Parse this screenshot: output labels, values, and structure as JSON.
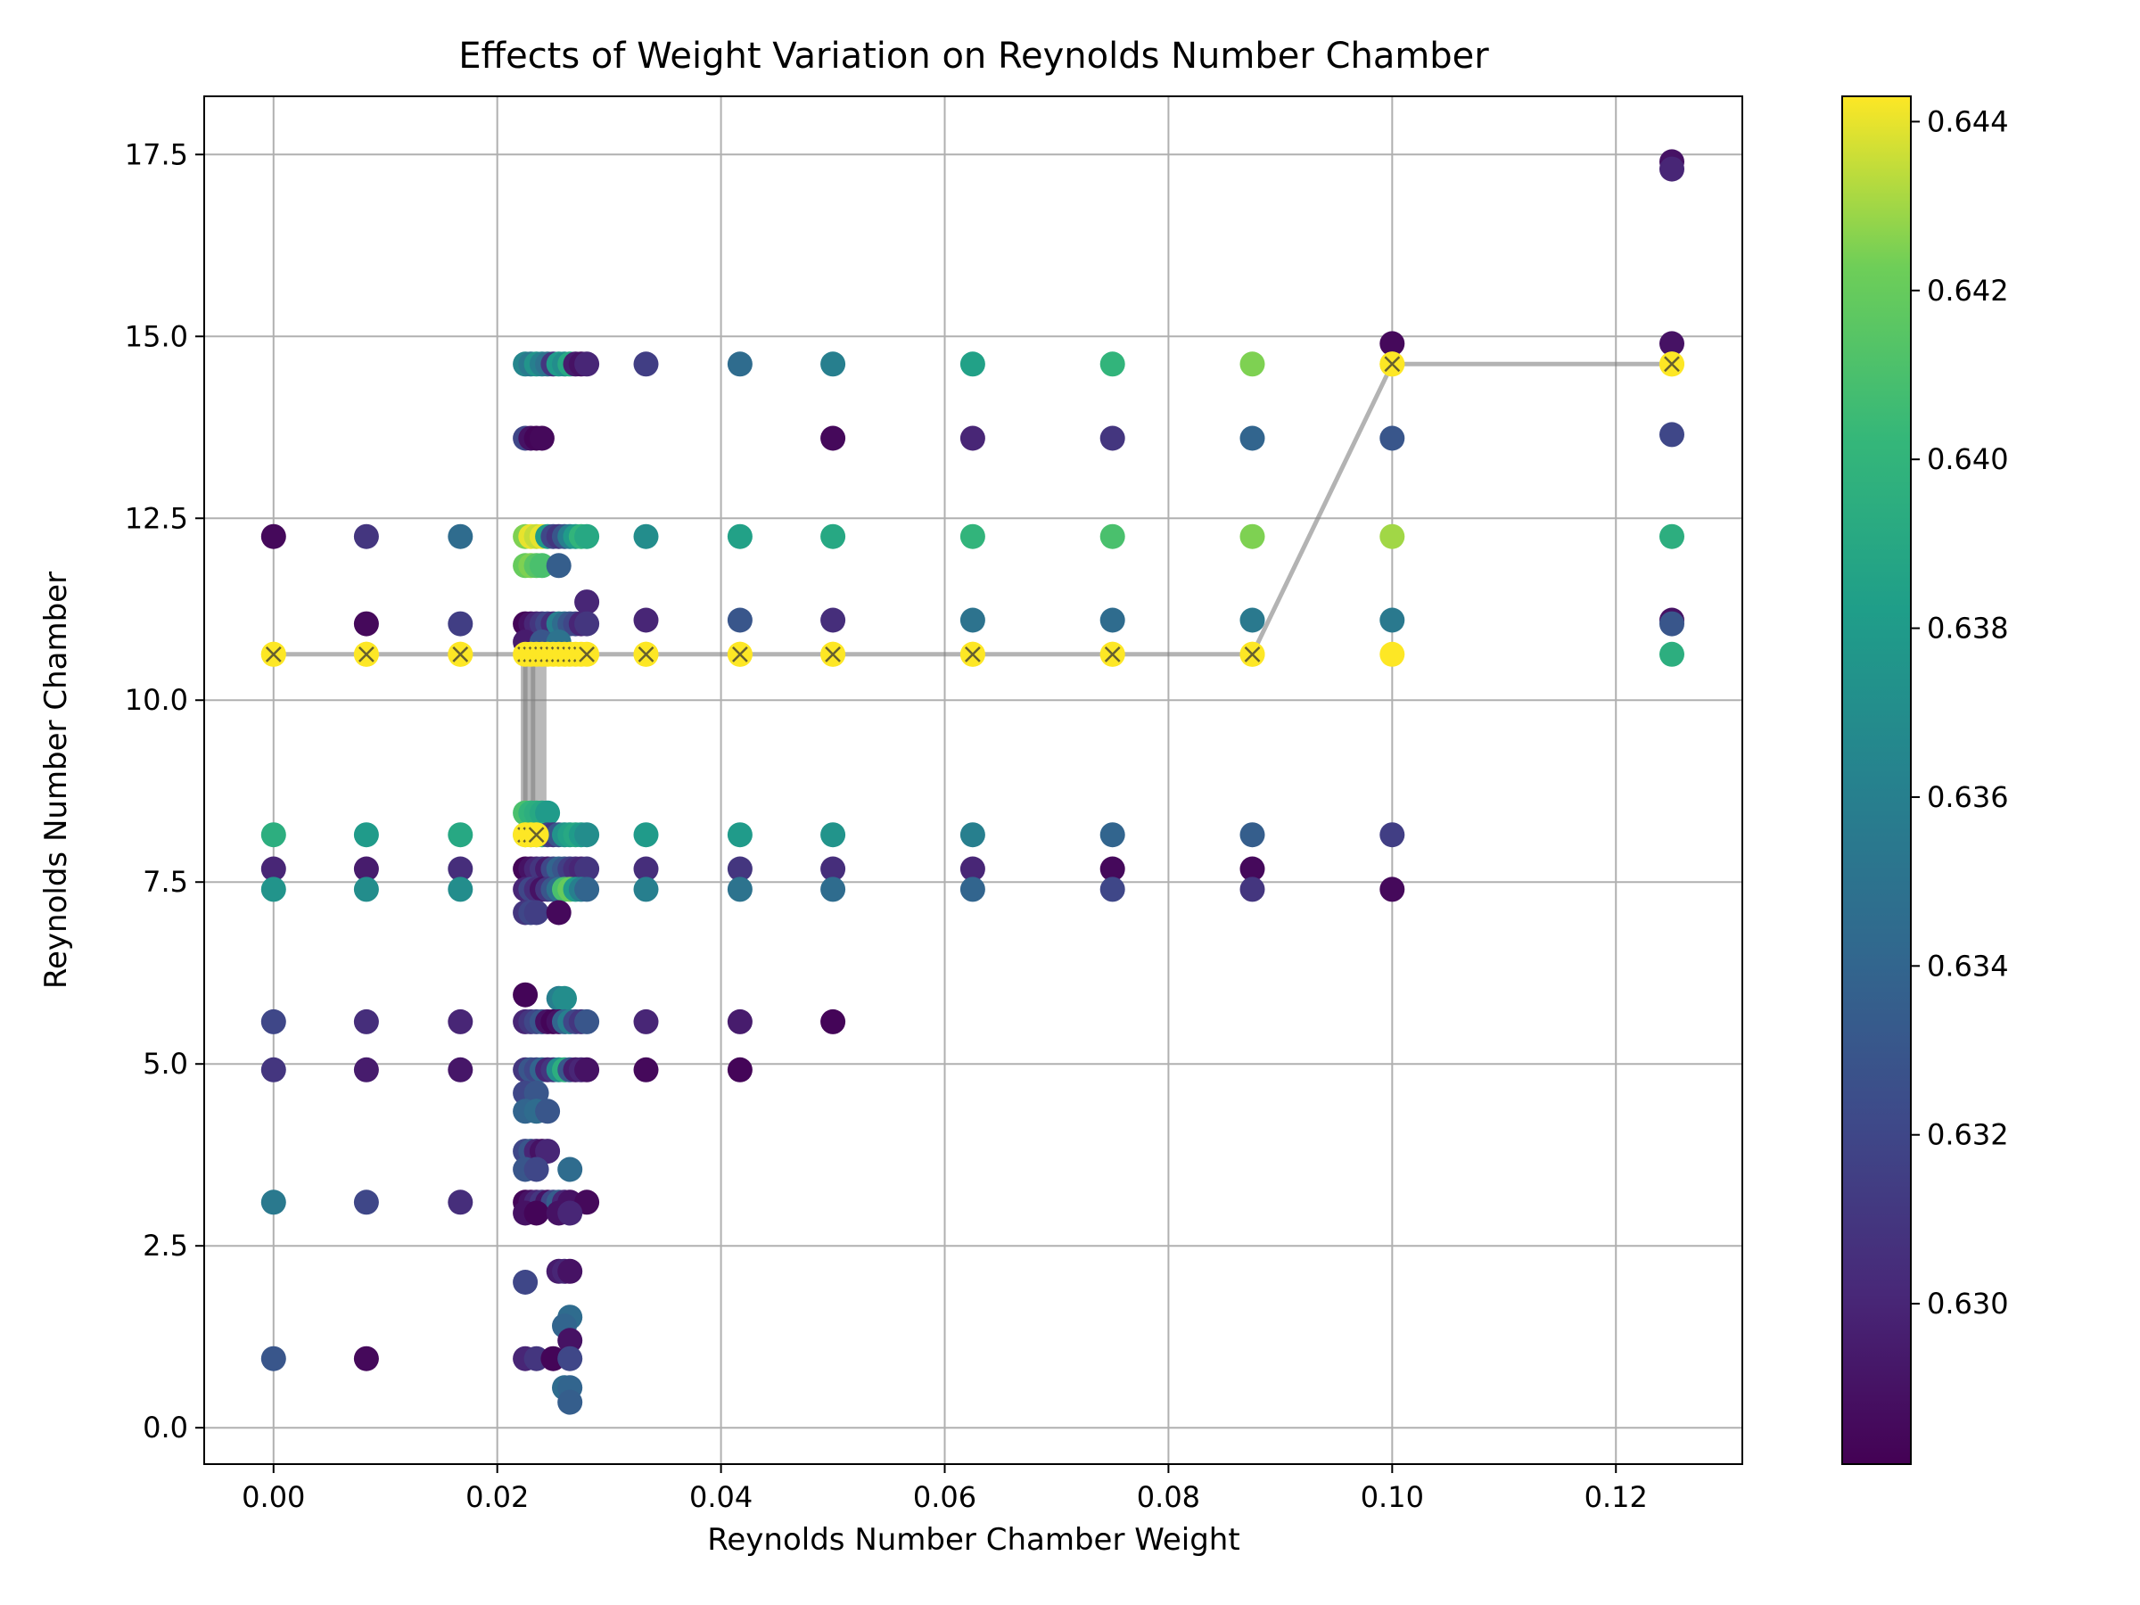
{
  "chart_data": {
    "type": "scatter",
    "title": "Effects of Weight Variation on Reynolds Number Chamber",
    "xlabel": "Reynolds Number Chamber Weight",
    "ylabel": "Reynolds Number Chamber",
    "xlim": [
      -0.0062,
      0.1313
    ],
    "ylim": [
      -0.5,
      18.3
    ],
    "xticks": [
      0.0,
      0.02,
      0.04,
      0.06,
      0.08,
      0.1,
      0.12
    ],
    "xtick_labels": [
      "0.00",
      "0.02",
      "0.04",
      "0.06",
      "0.08",
      "0.10",
      "0.12"
    ],
    "yticks": [
      0.0,
      2.5,
      5.0,
      7.5,
      10.0,
      12.5,
      15.0,
      17.5
    ],
    "ytick_labels": [
      "0.0",
      "2.5",
      "5.0",
      "7.5",
      "10.0",
      "12.5",
      "15.0",
      "17.5"
    ],
    "grid": true,
    "colorbar": {
      "cmap": "viridis",
      "range": [
        0.6281,
        0.6443
      ],
      "ticks": [
        0.63,
        0.632,
        0.634,
        0.636,
        0.638,
        0.64,
        0.642,
        0.644
      ],
      "tick_labels": [
        "0.630",
        "0.632",
        "0.634",
        "0.636",
        "0.638",
        "0.640",
        "0.642",
        "0.644"
      ]
    },
    "points": [
      [
        0.0,
        12.25,
        0.6285
      ],
      [
        0.0,
        10.63,
        0.6443
      ],
      [
        0.0,
        8.15,
        0.6395
      ],
      [
        0.0,
        7.68,
        0.63
      ],
      [
        0.0,
        7.4,
        0.6375
      ],
      [
        0.0,
        5.58,
        0.632
      ],
      [
        0.0,
        4.92,
        0.631
      ],
      [
        0.0,
        3.1,
        0.6355
      ],
      [
        0.0,
        0.95,
        0.633
      ],
      [
        0.0083,
        12.25,
        0.631
      ],
      [
        0.0083,
        11.05,
        0.6285
      ],
      [
        0.0083,
        10.63,
        0.6443
      ],
      [
        0.0083,
        8.15,
        0.638
      ],
      [
        0.0083,
        7.68,
        0.6295
      ],
      [
        0.0083,
        7.4,
        0.637
      ],
      [
        0.0083,
        5.58,
        0.6305
      ],
      [
        0.0083,
        4.92,
        0.6295
      ],
      [
        0.0083,
        3.1,
        0.632
      ],
      [
        0.0083,
        0.95,
        0.6285
      ],
      [
        0.0167,
        12.25,
        0.6345
      ],
      [
        0.0167,
        11.05,
        0.6315
      ],
      [
        0.0167,
        10.63,
        0.6443
      ],
      [
        0.0167,
        8.15,
        0.639
      ],
      [
        0.0167,
        7.68,
        0.6305
      ],
      [
        0.0167,
        7.4,
        0.637
      ],
      [
        0.0167,
        5.58,
        0.63
      ],
      [
        0.0167,
        4.92,
        0.6292
      ],
      [
        0.0167,
        3.1,
        0.6305
      ],
      [
        0.0333,
        14.62,
        0.6315
      ],
      [
        0.0333,
        12.25,
        0.637
      ],
      [
        0.0333,
        11.1,
        0.63
      ],
      [
        0.0333,
        10.63,
        0.6443
      ],
      [
        0.0333,
        8.15,
        0.638
      ],
      [
        0.0333,
        7.68,
        0.6305
      ],
      [
        0.0333,
        7.4,
        0.636
      ],
      [
        0.0333,
        5.58,
        0.63
      ],
      [
        0.0333,
        4.92,
        0.6285
      ],
      [
        0.0417,
        14.62,
        0.6345
      ],
      [
        0.0417,
        12.25,
        0.6385
      ],
      [
        0.0417,
        11.1,
        0.633
      ],
      [
        0.0417,
        10.63,
        0.6443
      ],
      [
        0.0417,
        8.15,
        0.638
      ],
      [
        0.0417,
        7.68,
        0.631
      ],
      [
        0.0417,
        7.4,
        0.635
      ],
      [
        0.0417,
        5.58,
        0.6295
      ],
      [
        0.0417,
        4.92,
        0.6283
      ],
      [
        0.05,
        14.62,
        0.636
      ],
      [
        0.05,
        13.6,
        0.6285
      ],
      [
        0.05,
        12.25,
        0.639
      ],
      [
        0.05,
        11.1,
        0.6305
      ],
      [
        0.05,
        10.63,
        0.6443
      ],
      [
        0.05,
        8.15,
        0.6375
      ],
      [
        0.05,
        7.68,
        0.6305
      ],
      [
        0.05,
        7.4,
        0.6345
      ],
      [
        0.05,
        5.58,
        0.6283
      ],
      [
        0.0625,
        14.62,
        0.6385
      ],
      [
        0.0625,
        13.6,
        0.63
      ],
      [
        0.0625,
        12.25,
        0.64
      ],
      [
        0.0625,
        11.1,
        0.635
      ],
      [
        0.0625,
        10.63,
        0.6443
      ],
      [
        0.0625,
        8.15,
        0.636
      ],
      [
        0.0625,
        7.68,
        0.63
      ],
      [
        0.0625,
        7.4,
        0.634
      ],
      [
        0.075,
        14.62,
        0.64
      ],
      [
        0.075,
        13.6,
        0.631
      ],
      [
        0.075,
        12.25,
        0.641
      ],
      [
        0.075,
        11.1,
        0.6345
      ],
      [
        0.075,
        10.63,
        0.6443
      ],
      [
        0.075,
        8.15,
        0.634
      ],
      [
        0.075,
        7.68,
        0.6285
      ],
      [
        0.075,
        7.4,
        0.632
      ],
      [
        0.0875,
        14.62,
        0.6425
      ],
      [
        0.0875,
        13.6,
        0.634
      ],
      [
        0.0875,
        12.25,
        0.6425
      ],
      [
        0.0875,
        11.1,
        0.6355
      ],
      [
        0.0875,
        10.63,
        0.6443
      ],
      [
        0.0875,
        8.15,
        0.6335
      ],
      [
        0.0875,
        7.68,
        0.6285
      ],
      [
        0.0875,
        7.4,
        0.631
      ],
      [
        0.1,
        14.9,
        0.6285
      ],
      [
        0.1,
        14.62,
        0.6443
      ],
      [
        0.1,
        13.6,
        0.633
      ],
      [
        0.1,
        12.25,
        0.643
      ],
      [
        0.1,
        11.1,
        0.6355
      ],
      [
        0.1,
        10.63,
        0.6443
      ],
      [
        0.1,
        8.15,
        0.6315
      ],
      [
        0.1,
        7.4,
        0.6285
      ],
      [
        0.125,
        17.4,
        0.629
      ],
      [
        0.125,
        17.3,
        0.63
      ],
      [
        0.125,
        14.9,
        0.629
      ],
      [
        0.125,
        14.62,
        0.6443
      ],
      [
        0.125,
        13.65,
        0.632
      ],
      [
        0.125,
        12.25,
        0.6395
      ],
      [
        0.125,
        11.1,
        0.629
      ],
      [
        0.125,
        11.05,
        0.633
      ],
      [
        0.125,
        10.63,
        0.6395
      ],
      [
        0.0225,
        14.62,
        0.6365
      ],
      [
        0.023,
        14.62,
        0.6355
      ],
      [
        0.0235,
        14.62,
        0.6375
      ],
      [
        0.024,
        14.62,
        0.636
      ],
      [
        0.0245,
        14.62,
        0.635
      ],
      [
        0.025,
        14.62,
        0.631
      ],
      [
        0.0255,
        14.62,
        0.638
      ],
      [
        0.026,
        14.62,
        0.637
      ],
      [
        0.0265,
        14.62,
        0.639
      ],
      [
        0.027,
        14.62,
        0.6295
      ],
      [
        0.0275,
        14.62,
        0.629
      ],
      [
        0.028,
        14.62,
        0.63
      ],
      [
        0.0225,
        13.6,
        0.632
      ],
      [
        0.023,
        13.6,
        0.629
      ],
      [
        0.0235,
        13.6,
        0.6283
      ],
      [
        0.024,
        13.6,
        0.6285
      ],
      [
        0.0225,
        12.25,
        0.6425
      ],
      [
        0.023,
        12.25,
        0.644
      ],
      [
        0.0235,
        12.25,
        0.6435
      ],
      [
        0.024,
        12.25,
        0.644
      ],
      [
        0.0245,
        12.25,
        0.638
      ],
      [
        0.025,
        12.25,
        0.632
      ],
      [
        0.0255,
        12.25,
        0.631
      ],
      [
        0.026,
        12.25,
        0.633
      ],
      [
        0.0265,
        12.25,
        0.636
      ],
      [
        0.027,
        12.25,
        0.638
      ],
      [
        0.0275,
        12.25,
        0.64
      ],
      [
        0.028,
        12.25,
        0.639
      ],
      [
        0.0225,
        11.85,
        0.642
      ],
      [
        0.023,
        11.85,
        0.6425
      ],
      [
        0.0235,
        11.85,
        0.6415
      ],
      [
        0.024,
        11.85,
        0.641
      ],
      [
        0.0255,
        11.85,
        0.6335
      ],
      [
        0.028,
        11.35,
        0.63
      ],
      [
        0.0225,
        11.05,
        0.6283
      ],
      [
        0.023,
        11.05,
        0.629
      ],
      [
        0.0235,
        11.05,
        0.63
      ],
      [
        0.024,
        11.05,
        0.631
      ],
      [
        0.0245,
        11.05,
        0.632
      ],
      [
        0.025,
        11.05,
        0.6305
      ],
      [
        0.0255,
        11.05,
        0.636
      ],
      [
        0.026,
        11.05,
        0.6345
      ],
      [
        0.0265,
        11.05,
        0.633
      ],
      [
        0.027,
        11.05,
        0.632
      ],
      [
        0.0275,
        11.05,
        0.63
      ],
      [
        0.028,
        11.05,
        0.631
      ],
      [
        0.0225,
        10.8,
        0.6295
      ],
      [
        0.024,
        10.8,
        0.633
      ],
      [
        0.0255,
        10.8,
        0.635
      ],
      [
        0.0225,
        8.45,
        0.641
      ],
      [
        0.023,
        8.45,
        0.64
      ],
      [
        0.0235,
        8.45,
        0.6395
      ],
      [
        0.024,
        8.45,
        0.639
      ],
      [
        0.0245,
        8.45,
        0.638
      ],
      [
        0.0225,
        8.15,
        0.643
      ],
      [
        0.023,
        8.15,
        0.6415
      ],
      [
        0.0235,
        8.15,
        0.641
      ],
      [
        0.024,
        8.15,
        0.64
      ],
      [
        0.0245,
        8.15,
        0.632
      ],
      [
        0.025,
        8.15,
        0.631
      ],
      [
        0.0255,
        8.15,
        0.633
      ],
      [
        0.026,
        8.15,
        0.6375
      ],
      [
        0.0265,
        8.15,
        0.6385
      ],
      [
        0.027,
        8.15,
        0.639
      ],
      [
        0.0275,
        8.15,
        0.638
      ],
      [
        0.028,
        8.15,
        0.637
      ],
      [
        0.0225,
        7.68,
        0.6283
      ],
      [
        0.023,
        7.68,
        0.629
      ],
      [
        0.0235,
        7.68,
        0.63
      ],
      [
        0.024,
        7.68,
        0.631
      ],
      [
        0.0245,
        7.68,
        0.6295
      ],
      [
        0.025,
        7.68,
        0.632
      ],
      [
        0.0255,
        7.68,
        0.634
      ],
      [
        0.026,
        7.68,
        0.633
      ],
      [
        0.0265,
        7.68,
        0.6315
      ],
      [
        0.027,
        7.68,
        0.6305
      ],
      [
        0.0275,
        7.68,
        0.63
      ],
      [
        0.028,
        7.68,
        0.631
      ],
      [
        0.0225,
        7.4,
        0.63
      ],
      [
        0.023,
        7.4,
        0.632
      ],
      [
        0.0235,
        7.4,
        0.6305
      ],
      [
        0.024,
        7.4,
        0.629
      ],
      [
        0.0245,
        7.4,
        0.631
      ],
      [
        0.025,
        7.4,
        0.633
      ],
      [
        0.0255,
        7.4,
        0.635
      ],
      [
        0.026,
        7.4,
        0.641
      ],
      [
        0.0265,
        7.4,
        0.642
      ],
      [
        0.027,
        7.4,
        0.638
      ],
      [
        0.0275,
        7.4,
        0.636
      ],
      [
        0.028,
        7.4,
        0.634
      ],
      [
        0.0225,
        7.08,
        0.631
      ],
      [
        0.023,
        7.08,
        0.632
      ],
      [
        0.0235,
        7.08,
        0.6315
      ],
      [
        0.0255,
        7.08,
        0.6285
      ],
      [
        0.0225,
        5.95,
        0.6283
      ],
      [
        0.0255,
        5.9,
        0.636
      ],
      [
        0.026,
        5.9,
        0.637
      ],
      [
        0.0225,
        5.58,
        0.63
      ],
      [
        0.023,
        5.58,
        0.631
      ],
      [
        0.0235,
        5.58,
        0.632
      ],
      [
        0.024,
        5.58,
        0.633
      ],
      [
        0.0245,
        5.58,
        0.629
      ],
      [
        0.025,
        5.58,
        0.6283
      ],
      [
        0.0255,
        5.58,
        0.629
      ],
      [
        0.026,
        5.58,
        0.634
      ],
      [
        0.0265,
        5.58,
        0.636
      ],
      [
        0.027,
        5.58,
        0.632
      ],
      [
        0.0275,
        5.58,
        0.631
      ],
      [
        0.028,
        5.58,
        0.633
      ],
      [
        0.0225,
        4.92,
        0.631
      ],
      [
        0.023,
        4.92,
        0.633
      ],
      [
        0.0235,
        4.92,
        0.632
      ],
      [
        0.024,
        4.92,
        0.634
      ],
      [
        0.0245,
        4.92,
        0.63
      ],
      [
        0.025,
        4.92,
        0.631
      ],
      [
        0.0255,
        4.92,
        0.637
      ],
      [
        0.026,
        4.92,
        0.6395
      ],
      [
        0.0265,
        4.92,
        0.633
      ],
      [
        0.027,
        4.92,
        0.6295
      ],
      [
        0.0275,
        4.92,
        0.63
      ],
      [
        0.028,
        4.92,
        0.629
      ],
      [
        0.0225,
        4.6,
        0.632
      ],
      [
        0.0235,
        4.6,
        0.633
      ],
      [
        0.0225,
        4.35,
        0.634
      ],
      [
        0.0235,
        4.35,
        0.6345
      ],
      [
        0.0245,
        4.35,
        0.633
      ],
      [
        0.0225,
        3.8,
        0.632
      ],
      [
        0.023,
        3.8,
        0.633
      ],
      [
        0.0235,
        3.8,
        0.63
      ],
      [
        0.024,
        3.8,
        0.629
      ],
      [
        0.0245,
        3.8,
        0.63
      ],
      [
        0.0225,
        3.55,
        0.633
      ],
      [
        0.0235,
        3.55,
        0.632
      ],
      [
        0.0265,
        3.55,
        0.6345
      ],
      [
        0.0225,
        3.1,
        0.6283
      ],
      [
        0.023,
        3.1,
        0.629
      ],
      [
        0.0235,
        3.1,
        0.63
      ],
      [
        0.024,
        3.1,
        0.631
      ],
      [
        0.0245,
        3.1,
        0.629
      ],
      [
        0.025,
        3.1,
        0.632
      ],
      [
        0.0255,
        3.1,
        0.6335
      ],
      [
        0.026,
        3.1,
        0.63
      ],
      [
        0.0265,
        3.1,
        0.629
      ],
      [
        0.028,
        3.1,
        0.6285
      ],
      [
        0.0225,
        2.95,
        0.629
      ],
      [
        0.0235,
        2.95,
        0.6283
      ],
      [
        0.0255,
        2.95,
        0.629
      ],
      [
        0.0265,
        2.95,
        0.63
      ],
      [
        0.0225,
        2.0,
        0.632
      ],
      [
        0.0255,
        2.15,
        0.6295
      ],
      [
        0.026,
        2.15,
        0.63
      ],
      [
        0.0265,
        2.15,
        0.629
      ],
      [
        0.0265,
        1.52,
        0.6345
      ],
      [
        0.026,
        1.4,
        0.634
      ],
      [
        0.0265,
        1.2,
        0.629
      ],
      [
        0.0225,
        0.95,
        0.63
      ],
      [
        0.0235,
        0.95,
        0.631
      ],
      [
        0.025,
        0.95,
        0.6283
      ],
      [
        0.0265,
        0.95,
        0.632
      ],
      [
        0.026,
        0.55,
        0.6345
      ],
      [
        0.0265,
        0.55,
        0.634
      ],
      [
        0.0265,
        0.35,
        0.6335
      ]
    ],
    "optimal_path": {
      "x": [
        0.0,
        0.0083,
        0.0167,
        0.0225,
        0.0225,
        0.0232,
        0.0232,
        0.024,
        0.0333,
        0.0417,
        0.05,
        0.0625,
        0.075,
        0.0875,
        0.1,
        0.125
      ],
      "y": [
        10.63,
        10.63,
        10.63,
        10.63,
        8.15,
        8.15,
        10.63,
        10.63,
        10.63,
        10.63,
        10.63,
        10.63,
        10.63,
        10.63,
        14.62,
        14.62
      ]
    },
    "optimal_markers": [
      [
        0.0,
        10.63
      ],
      [
        0.0083,
        10.63
      ],
      [
        0.0167,
        10.63
      ],
      [
        0.0225,
        10.63
      ],
      [
        0.023,
        10.63
      ],
      [
        0.0235,
        10.63
      ],
      [
        0.024,
        10.63
      ],
      [
        0.0245,
        10.63
      ],
      [
        0.025,
        10.63
      ],
      [
        0.0255,
        10.63
      ],
      [
        0.026,
        10.63
      ],
      [
        0.0265,
        10.63
      ],
      [
        0.027,
        10.63
      ],
      [
        0.0275,
        10.63
      ],
      [
        0.028,
        10.63
      ],
      [
        0.0225,
        8.15
      ],
      [
        0.023,
        8.15
      ],
      [
        0.0235,
        8.15
      ],
      [
        0.0333,
        10.63
      ],
      [
        0.0417,
        10.63
      ],
      [
        0.05,
        10.63
      ],
      [
        0.0625,
        10.63
      ],
      [
        0.075,
        10.63
      ],
      [
        0.0875,
        10.63
      ],
      [
        0.1,
        14.62
      ],
      [
        0.125,
        14.62
      ]
    ]
  }
}
